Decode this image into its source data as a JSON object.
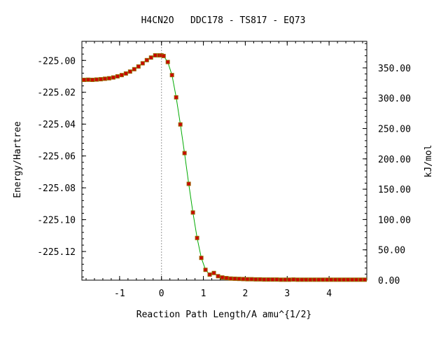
{
  "chart_data": {
    "type": "line",
    "title": "H4CN2O   DDC178 - TS817 - EQ73",
    "xlabel": "Reaction Path Length/A amu^{1/2}",
    "ylabel": "Energy/Hartree",
    "y2label": "kJ/mol",
    "xlim": [
      -1.9,
      4.9
    ],
    "ylim": [
      -225.138,
      -224.988
    ],
    "y2lim": [
      0.0,
      393.8
    ],
    "x_ticks": [
      -1,
      0,
      1,
      2,
      3,
      4
    ],
    "x_tick_labels": [
      "-1",
      "0",
      "1",
      "2",
      "3",
      "4"
    ],
    "y_ticks": [
      -225.0,
      -225.02,
      -225.04,
      -225.06,
      -225.08,
      -225.1,
      -225.12
    ],
    "y_tick_labels": [
      "-225.00",
      "-225.02",
      "-225.04",
      "-225.06",
      "-225.08",
      "-225.10",
      "-225.12"
    ],
    "y2_ticks": [
      0,
      50,
      100,
      150,
      200,
      250,
      300,
      350
    ],
    "y2_tick_labels": [
      "0.00",
      "50.00",
      "100.00",
      "150.00",
      "200.00",
      "250.00",
      "300.00",
      "350.00"
    ],
    "ts_marker_x": 0,
    "grid": false,
    "colors": {
      "line": "#00aa00",
      "marker_fill": "#cc0000",
      "marker_edge": "#996600",
      "ts_line": "#999999"
    },
    "series": [
      {
        "x": [
          -1.85,
          -1.75,
          -1.65,
          -1.55,
          -1.45,
          -1.35,
          -1.25,
          -1.15,
          -1.05,
          -0.95,
          -0.85,
          -0.75,
          -0.65,
          -0.55,
          -0.45,
          -0.35,
          -0.25,
          -0.15,
          -0.05,
          0.0,
          0.05,
          0.15,
          0.25,
          0.35,
          0.45,
          0.55,
          0.65,
          0.75,
          0.85,
          0.95,
          1.05,
          1.15,
          1.25,
          1.35,
          1.45,
          1.55,
          1.65,
          1.75,
          1.85,
          1.95,
          2.05,
          2.15,
          2.25,
          2.35,
          2.45,
          2.55,
          2.65,
          2.75,
          2.85,
          2.95,
          3.05,
          3.15,
          3.25,
          3.35,
          3.45,
          3.55,
          3.65,
          3.75,
          3.85,
          3.95,
          4.05,
          4.15,
          4.25,
          4.35,
          4.45,
          4.55,
          4.65,
          4.75,
          4.85
        ],
        "y": [
          -225.0122,
          -225.0121,
          -225.0122,
          -225.012,
          -225.0118,
          -225.0115,
          -225.0112,
          -225.0107,
          -225.01,
          -225.0092,
          -225.0082,
          -225.007,
          -225.0055,
          -225.0038,
          -225.0018,
          -224.9998,
          -224.9982,
          -224.9968,
          -224.9968,
          -224.9968,
          -224.9972,
          -225.001,
          -225.0092,
          -225.0232,
          -225.0402,
          -225.0582,
          -225.0775,
          -225.0955,
          -225.1115,
          -225.124,
          -225.1315,
          -225.1345,
          -225.1335,
          -225.1355,
          -225.1363,
          -225.1367,
          -225.137,
          -225.1371,
          -225.1372,
          -225.1373,
          -225.1374,
          -225.1374,
          -225.1375,
          -225.1375,
          -225.1376,
          -225.1376,
          -225.1376,
          -225.1376,
          -225.1377,
          -225.1377,
          -225.1377,
          -225.1376,
          -225.1377,
          -225.1377,
          -225.1377,
          -225.1377,
          -225.1377,
          -225.1377,
          -225.1377,
          -225.1377,
          -225.1377,
          -225.1377,
          -225.1377,
          -225.1377,
          -225.1377,
          -225.1377,
          -225.1377,
          -225.1377,
          -225.1377
        ]
      }
    ]
  }
}
